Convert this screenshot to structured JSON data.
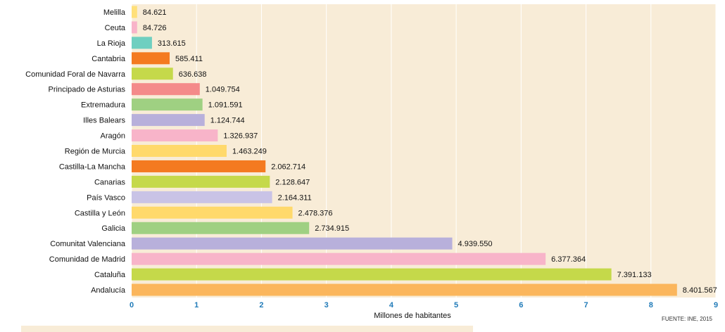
{
  "chart_data": {
    "type": "bar",
    "orientation": "horizontal",
    "title": "",
    "xlabel": "Millones de habitantes",
    "ylabel": "",
    "xlim": [
      0,
      9
    ],
    "xticks": [
      "0",
      "1",
      "2",
      "3",
      "4",
      "5",
      "6",
      "7",
      "8",
      "9"
    ],
    "grid": true,
    "source": "FUENTE: INE, 2015",
    "categories": [
      "Melilla",
      "Ceuta",
      "La Rioja",
      "Cantabria",
      "Comunidad Foral de Navarra",
      "Principado de Asturias",
      "Extremadura",
      "Illes Balears",
      "Aragón",
      "Región de Murcia",
      "Castilla-La Mancha",
      "Canarias",
      "País Vasco",
      "Castilla y León",
      "Galicia",
      "Comunitat Valenciana",
      "Comunidad de Madrid",
      "Cataluña",
      "Andalucía"
    ],
    "values": [
      0.084621,
      0.084726,
      0.313615,
      0.585411,
      0.636638,
      1.049754,
      1.091591,
      1.124744,
      1.326937,
      1.463249,
      2.062714,
      2.128647,
      2.164311,
      2.478376,
      2.734915,
      4.93955,
      6.377364,
      7.391133,
      8.401567
    ],
    "value_labels": [
      "84.621",
      "84.726",
      "313.615",
      "585.411",
      "636.638",
      "1.049.754",
      "1.091.591",
      "1.124.744",
      "1.326.937",
      "1.463.249",
      "2.062.714",
      "2.128.647",
      "2.164.311",
      "2.478.376",
      "2.734.915",
      "4.939.550",
      "6.377.364",
      "7.391.133",
      "8.401.567"
    ],
    "colors": [
      "#ffe07a",
      "#f8b4c9",
      "#6fcfc0",
      "#f47a20",
      "#c5d94a",
      "#f48a8a",
      "#9fd082",
      "#b8b0db",
      "#f8b4c9",
      "#ffd96b",
      "#f47a20",
      "#c5d94a",
      "#c9c3e6",
      "#ffd96b",
      "#9fd082",
      "#b8b0db",
      "#f8b4c9",
      "#c5d94a",
      "#fbb65c"
    ],
    "plot_background": "#f8ecd7",
    "grid_color": "#ffffff",
    "tick_color": "#1f7ab8"
  }
}
